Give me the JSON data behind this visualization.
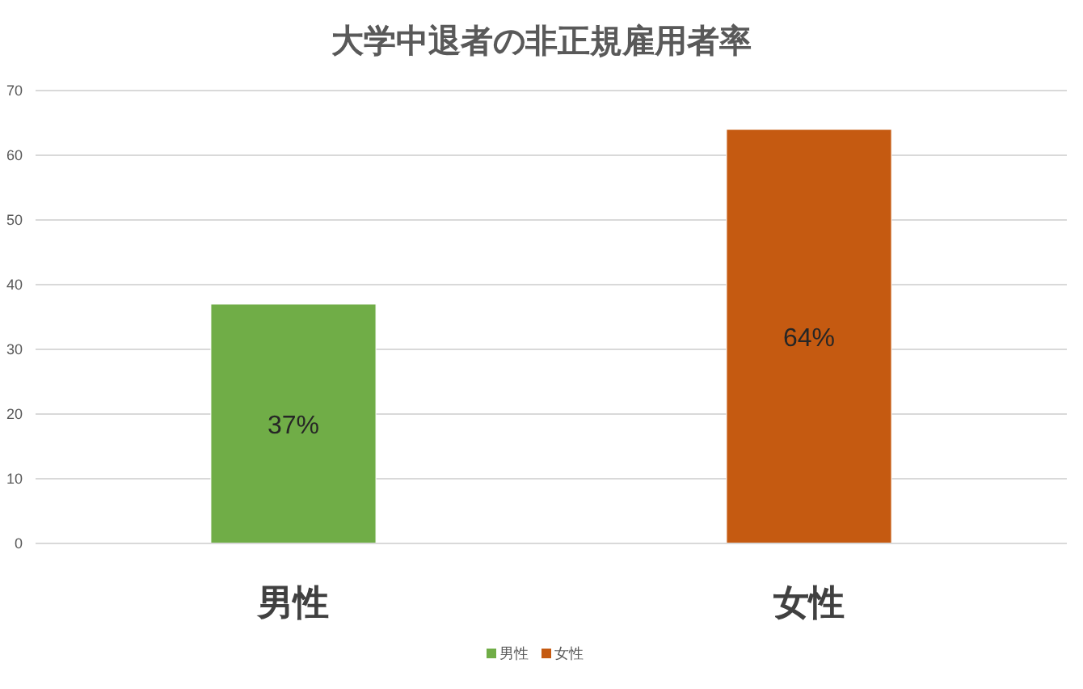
{
  "chart_data": {
    "type": "bar",
    "title": "大学中退者の非正規雇用者率",
    "categories": [
      "男性",
      "女性"
    ],
    "series": [
      {
        "name": "男性",
        "color": "#70ad47",
        "values": [
          37,
          null
        ],
        "value_labels": [
          "37%",
          null
        ]
      },
      {
        "name": "女性",
        "color": "#c55a11",
        "values": [
          null,
          64
        ],
        "value_labels": [
          null,
          "64%"
        ]
      }
    ],
    "ylim": [
      0,
      70
    ],
    "yticks": [
      0,
      10,
      20,
      30,
      40,
      50,
      60,
      70
    ],
    "grid": "y",
    "legend": "bottom"
  }
}
